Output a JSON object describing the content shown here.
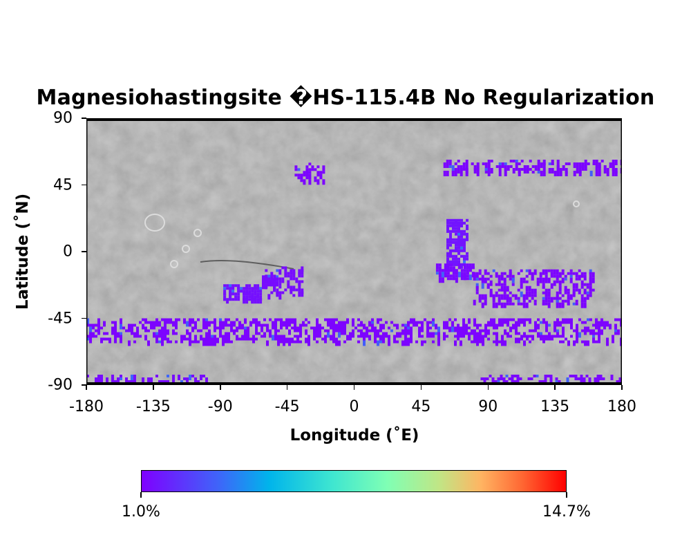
{
  "chart_data": {
    "type": "heatmap",
    "title": "Magnesiohastingsite �HS-115.4B No Regularization",
    "xlabel": "Longitude (˚E)",
    "ylabel": "Latitude (˚N)",
    "xlim": [
      -180,
      180
    ],
    "ylim": [
      -90,
      90
    ],
    "xticks": [
      "-180",
      "-135",
      "-90",
      "-45",
      "0",
      "45",
      "90",
      "135",
      "180"
    ],
    "yticks": [
      "90",
      "45",
      "0",
      "-45",
      "-90"
    ],
    "basemap": "shaded-relief-grayscale",
    "colormap": "rainbow",
    "colorbar": {
      "min_label": "1.0%",
      "max_label": "14.7%",
      "min": 1.0,
      "max": 14.7
    },
    "regions": [
      {
        "lon": [
          -88,
          -62
        ],
        "lat": [
          -32,
          -22
        ],
        "value": 1.4
      },
      {
        "lon": [
          -62,
          -52
        ],
        "lat": [
          -24,
          -16
        ],
        "value": 1.3
      },
      {
        "lon": [
          62,
          76
        ],
        "lat": [
          -8,
          22
        ],
        "value": 1.5
      },
      {
        "lon": [
          55,
          80
        ],
        "lat": [
          -18,
          -8
        ],
        "value": 1.2
      },
      {
        "lon": [
          -180,
          180
        ],
        "lat": [
          -60,
          -45
        ],
        "value": 1.1
      },
      {
        "lon": [
          -180,
          -100
        ],
        "lat": [
          -90,
          -83
        ],
        "value": 1.3
      },
      {
        "lon": [
          85,
          180
        ],
        "lat": [
          -90,
          -83
        ],
        "value": 1.2
      },
      {
        "lon": [
          80,
          160
        ],
        "lat": [
          -35,
          -12
        ],
        "value": 1.1
      },
      {
        "lon": [
          60,
          180
        ],
        "lat": [
          54,
          62
        ],
        "value": 1.1
      },
      {
        "lon": [
          -40,
          -20
        ],
        "lat": [
          48,
          60
        ],
        "value": 1.1
      },
      {
        "lon": [
          -60,
          -35
        ],
        "lat": [
          -30,
          -10
        ],
        "value": 1.3
      }
    ]
  }
}
